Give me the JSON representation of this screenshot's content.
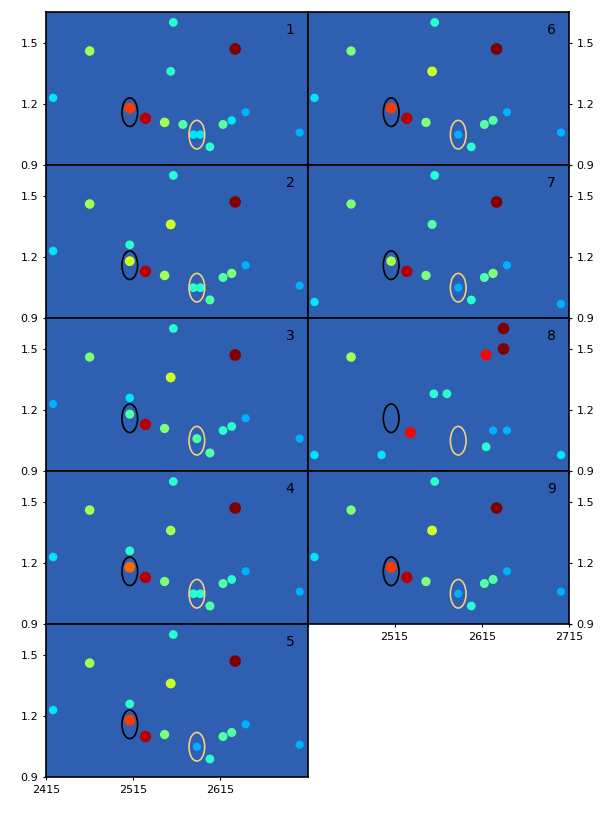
{
  "chart_data": [
    {
      "type": "scatter",
      "title": "1",
      "tick_labels": "y",
      "xlim": [
        2415,
        2715
      ],
      "ylim": [
        0.9,
        1.65
      ],
      "xticks": [
        2415,
        2515,
        2615,
        2715
      ],
      "yticks": [
        0.9,
        1.2,
        1.5
      ],
      "zlim": [
        0,
        1
      ],
      "x": [
        2465,
        2561,
        2558,
        2632,
        2423,
        2511,
        2529,
        2551,
        2572,
        2584,
        2592,
        2603,
        2618,
        2628,
        2644,
        2706
      ],
      "y": [
        1.46,
        1.6,
        1.36,
        1.47,
        1.23,
        1.18,
        1.13,
        1.11,
        1.1,
        1.05,
        1.05,
        0.99,
        1.1,
        1.12,
        1.16,
        1.06
      ],
      "intensity": [
        0.55,
        0.4,
        0.4,
        1.0,
        0.35,
        0.85,
        0.95,
        0.55,
        0.45,
        0.35,
        0.35,
        0.4,
        0.45,
        0.35,
        0.3,
        0.3
      ],
      "highlights": [
        {
          "x": 2511,
          "y": 1.16,
          "color": "#000000"
        },
        {
          "x": 2588,
          "y": 1.05,
          "color": "#f0d080"
        }
      ]
    },
    {
      "type": "scatter",
      "title": "2",
      "tick_labels": "y",
      "xlim": [
        2415,
        2715
      ],
      "ylim": [
        0.9,
        1.65
      ],
      "xticks": [
        2415,
        2515,
        2615,
        2715
      ],
      "yticks": [
        0.9,
        1.2,
        1.5
      ],
      "zlim": [
        0,
        1
      ],
      "x": [
        2465,
        2561,
        2558,
        2632,
        2423,
        2511,
        2511,
        2529,
        2551,
        2584,
        2592,
        2603,
        2618,
        2628,
        2644,
        2706
      ],
      "y": [
        1.46,
        1.6,
        1.36,
        1.47,
        1.23,
        1.18,
        1.26,
        1.13,
        1.11,
        1.05,
        1.05,
        0.99,
        1.1,
        1.12,
        1.16,
        1.06
      ],
      "intensity": [
        0.55,
        0.4,
        0.6,
        1.0,
        0.35,
        0.6,
        0.4,
        0.95,
        0.55,
        0.4,
        0.4,
        0.45,
        0.45,
        0.5,
        0.3,
        0.3
      ],
      "highlights": [
        {
          "x": 2511,
          "y": 1.16,
          "color": "#000000"
        },
        {
          "x": 2588,
          "y": 1.05,
          "color": "#f0d080"
        }
      ]
    },
    {
      "type": "scatter",
      "title": "3",
      "tick_labels": "y",
      "xlim": [
        2415,
        2715
      ],
      "ylim": [
        0.9,
        1.65
      ],
      "xticks": [
        2415,
        2515,
        2615,
        2715
      ],
      "yticks": [
        0.9,
        1.2,
        1.5
      ],
      "zlim": [
        0,
        1
      ],
      "x": [
        2465,
        2561,
        2558,
        2632,
        2423,
        2511,
        2511,
        2529,
        2551,
        2588,
        2603,
        2618,
        2628,
        2644,
        2706
      ],
      "y": [
        1.46,
        1.6,
        1.36,
        1.47,
        1.23,
        1.18,
        1.26,
        1.13,
        1.11,
        1.06,
        0.99,
        1.1,
        1.12,
        1.16,
        1.06
      ],
      "intensity": [
        0.5,
        0.4,
        0.6,
        1.0,
        0.3,
        0.45,
        0.35,
        0.95,
        0.5,
        0.45,
        0.45,
        0.4,
        0.4,
        0.3,
        0.3
      ],
      "highlights": [
        {
          "x": 2511,
          "y": 1.16,
          "color": "#000000"
        },
        {
          "x": 2588,
          "y": 1.05,
          "color": "#f0d080"
        }
      ]
    },
    {
      "type": "scatter",
      "title": "4",
      "tick_labels": "y",
      "xlim": [
        2415,
        2715
      ],
      "ylim": [
        0.9,
        1.65
      ],
      "xticks": [
        2415,
        2515,
        2615,
        2715
      ],
      "yticks": [
        0.9,
        1.2,
        1.5
      ],
      "zlim": [
        0,
        1
      ],
      "x": [
        2465,
        2561,
        2558,
        2632,
        2423,
        2511,
        2511,
        2529,
        2551,
        2584,
        2592,
        2603,
        2618,
        2628,
        2644,
        2706
      ],
      "y": [
        1.46,
        1.6,
        1.36,
        1.47,
        1.23,
        1.18,
        1.26,
        1.13,
        1.11,
        1.05,
        1.05,
        0.99,
        1.1,
        1.12,
        1.16,
        1.06
      ],
      "intensity": [
        0.55,
        0.4,
        0.55,
        1.0,
        0.35,
        0.8,
        0.4,
        0.95,
        0.5,
        0.4,
        0.4,
        0.45,
        0.45,
        0.4,
        0.3,
        0.3
      ],
      "highlights": [
        {
          "x": 2511,
          "y": 1.16,
          "color": "#000000"
        },
        {
          "x": 2588,
          "y": 1.05,
          "color": "#f0d080"
        }
      ]
    },
    {
      "type": "scatter",
      "title": "5",
      "tick_labels": true,
      "xlim": [
        2415,
        2715
      ],
      "ylim": [
        0.9,
        1.65
      ],
      "xticks": [
        2415,
        2515,
        2615
      ],
      "yticks": [
        0.9,
        1.2,
        1.5
      ],
      "zlim": [
        0,
        1
      ],
      "x": [
        2465,
        2561,
        2558,
        2632,
        2423,
        2511,
        2511,
        2529,
        2551,
        2588,
        2603,
        2618,
        2628,
        2644,
        2706
      ],
      "y": [
        1.46,
        1.6,
        1.36,
        1.47,
        1.23,
        1.18,
        1.26,
        1.1,
        1.11,
        1.05,
        0.99,
        1.1,
        1.12,
        1.16,
        1.06
      ],
      "intensity": [
        0.55,
        0.4,
        0.6,
        1.0,
        0.35,
        0.85,
        0.4,
        0.95,
        0.5,
        0.3,
        0.4,
        0.45,
        0.45,
        0.3,
        0.3
      ],
      "highlights": [
        {
          "x": 2511,
          "y": 1.16,
          "color": "#000000"
        },
        {
          "x": 2588,
          "y": 1.05,
          "color": "#f0d080"
        }
      ]
    },
    {
      "type": "scatter",
      "title": "6",
      "tick_labels": "y",
      "xlim": [
        2415,
        2715
      ],
      "ylim": [
        0.9,
        1.65
      ],
      "xticks": [
        2415,
        2515,
        2615,
        2715
      ],
      "yticks": [
        0.9,
        1.2,
        1.5
      ],
      "zlim": [
        0,
        1
      ],
      "x": [
        2465,
        2561,
        2558,
        2632,
        2423,
        2511,
        2529,
        2551,
        2588,
        2603,
        2618,
        2628,
        2644,
        2706
      ],
      "y": [
        1.46,
        1.6,
        1.36,
        1.47,
        1.23,
        1.18,
        1.13,
        1.11,
        1.05,
        0.99,
        1.1,
        1.12,
        1.16,
        1.06
      ],
      "intensity": [
        0.5,
        0.4,
        0.6,
        1.0,
        0.35,
        0.85,
        0.95,
        0.5,
        0.3,
        0.4,
        0.45,
        0.45,
        0.3,
        0.3
      ],
      "highlights": [
        {
          "x": 2511,
          "y": 1.16,
          "color": "#000000"
        },
        {
          "x": 2588,
          "y": 1.05,
          "color": "#f0d080"
        }
      ]
    },
    {
      "type": "scatter",
      "title": "7",
      "tick_labels": "y",
      "xlim": [
        2415,
        2715
      ],
      "ylim": [
        0.9,
        1.65
      ],
      "xticks": [
        2415,
        2515,
        2615,
        2715
      ],
      "yticks": [
        0.9,
        1.2,
        1.5
      ],
      "zlim": [
        0,
        1
      ],
      "x": [
        2465,
        2561,
        2558,
        2632,
        2423,
        2511,
        2529,
        2551,
        2588,
        2603,
        2618,
        2628,
        2644,
        2706
      ],
      "y": [
        1.46,
        1.6,
        1.36,
        1.47,
        0.98,
        1.18,
        1.13,
        1.11,
        1.05,
        0.99,
        1.1,
        1.12,
        1.16,
        0.97
      ],
      "intensity": [
        0.5,
        0.4,
        0.45,
        1.0,
        0.35,
        0.55,
        0.95,
        0.5,
        0.3,
        0.4,
        0.45,
        0.5,
        0.3,
        0.3
      ],
      "highlights": [
        {
          "x": 2511,
          "y": 1.16,
          "color": "#000000"
        },
        {
          "x": 2588,
          "y": 1.05,
          "color": "#f0d080"
        }
      ]
    },
    {
      "type": "scatter",
      "title": "8",
      "tick_labels": "y",
      "xlim": [
        2415,
        2715
      ],
      "ylim": [
        0.9,
        1.65
      ],
      "xticks": [
        2415,
        2515,
        2615,
        2715
      ],
      "yticks": [
        0.9,
        1.2,
        1.5
      ],
      "zlim": [
        0,
        1
      ],
      "x": [
        2465,
        2533,
        2560,
        2575,
        2620,
        2640,
        2640,
        2423,
        2500,
        2620,
        2706,
        2644,
        2628
      ],
      "y": [
        1.46,
        1.09,
        1.28,
        1.28,
        1.47,
        1.5,
        1.6,
        0.98,
        0.98,
        1.02,
        0.98,
        1.1,
        1.1
      ],
      "intensity": [
        0.55,
        0.9,
        0.4,
        0.4,
        0.9,
        1.0,
        1.0,
        0.35,
        0.35,
        0.4,
        0.35,
        0.3,
        0.3
      ],
      "highlights": [
        {
          "x": 2511,
          "y": 1.16,
          "color": "#000000"
        },
        {
          "x": 2588,
          "y": 1.05,
          "color": "#f0d080"
        }
      ]
    },
    {
      "type": "scatter",
      "title": "9",
      "tick_labels": true,
      "xlim": [
        2415,
        2715
      ],
      "ylim": [
        0.9,
        1.65
      ],
      "xticks": [
        2515,
        2615,
        2715
      ],
      "yticks": [
        0.9,
        1.2,
        1.5
      ],
      "zlim": [
        0,
        1
      ],
      "x": [
        2465,
        2561,
        2558,
        2632,
        2423,
        2511,
        2529,
        2551,
        2588,
        2603,
        2618,
        2628,
        2644,
        2706
      ],
      "y": [
        1.46,
        1.6,
        1.36,
        1.47,
        1.23,
        1.18,
        1.13,
        1.11,
        1.05,
        0.99,
        1.1,
        1.12,
        1.16,
        1.06
      ],
      "intensity": [
        0.5,
        0.4,
        0.6,
        1.0,
        0.35,
        0.85,
        0.95,
        0.5,
        0.3,
        0.4,
        0.45,
        0.45,
        0.3,
        0.3
      ],
      "highlights": [
        {
          "x": 2511,
          "y": 1.16,
          "color": "#000000"
        },
        {
          "x": 2588,
          "y": 1.05,
          "color": "#f0d080"
        }
      ]
    }
  ]
}
